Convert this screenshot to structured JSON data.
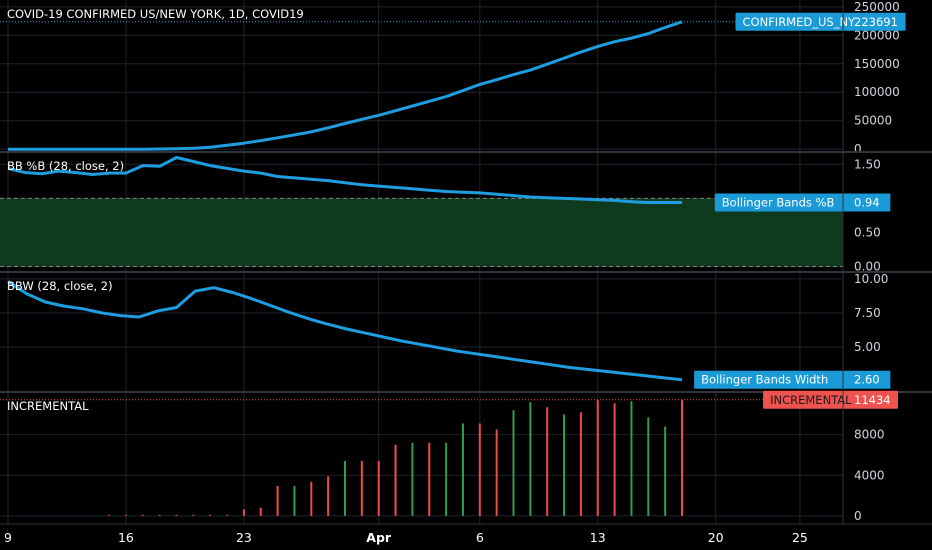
{
  "colors": {
    "background": "#000000",
    "grid": "#1f232c",
    "separator": "#30343d",
    "line": "#1e9ee0",
    "bullish": "#2e9e4f",
    "bearish": "#ef4b4b",
    "band_fill": "#0f3a1e",
    "badge_blue": "#1a9ad6",
    "badge_red": "#ef5350"
  },
  "chart_data": [
    {
      "type": "line",
      "title": "COVID-19 CONFIRMED US/NEW YORK, 1D, COVID19",
      "series": [
        {
          "name": "CONFIRMED_US_NY",
          "values": [
            0,
            0,
            0,
            0,
            0,
            0,
            0,
            0,
            0,
            200,
            600,
            1500,
            3500,
            7000,
            10500,
            15000,
            20000,
            25000,
            30500,
            37500,
            45000,
            52500,
            59500,
            67500,
            75800,
            84000,
            92400,
            102800,
            113700,
            122000,
            131000,
            138800,
            149300,
            159900,
            170500,
            180500,
            188700,
            195000,
            203000,
            213800,
            223691
          ]
        }
      ],
      "x_start": "Mar 9",
      "yticks": [
        0,
        50000,
        100000,
        150000,
        200000,
        250000
      ],
      "ylim": [
        -5000,
        262000
      ],
      "last_value": "223691",
      "last_label": "CONFIRMED_US_NY"
    },
    {
      "type": "line",
      "title": "BB %B (28, close, 2)",
      "series": [
        {
          "name": "Bollinger Bands %B",
          "values": [
            1.44,
            1.38,
            1.36,
            1.4,
            1.38,
            1.35,
            1.37,
            1.37,
            1.48,
            1.47,
            1.6,
            1.54,
            1.48,
            1.44,
            1.4,
            1.37,
            1.32,
            1.3,
            1.28,
            1.26,
            1.23,
            1.2,
            1.18,
            1.16,
            1.14,
            1.12,
            1.1,
            1.09,
            1.08,
            1.06,
            1.04,
            1.02,
            1.01,
            1.0,
            0.99,
            0.98,
            0.97,
            0.95,
            0.94,
            0.94,
            0.94
          ]
        }
      ],
      "band": [
        0,
        1
      ],
      "yticks": [
        0.0,
        0.5,
        1.0,
        1.5
      ],
      "ylim": [
        -0.08,
        1.68
      ],
      "last_value": "0.94",
      "last_label": "Bollinger Bands %B"
    },
    {
      "type": "line",
      "title": "BBW (28, close, 2)",
      "series": [
        {
          "name": "Bollinger Bands Width",
          "values": [
            9.8,
            8.9,
            8.3,
            8.0,
            7.8,
            7.5,
            7.3,
            7.2,
            7.65,
            7.9,
            9.1,
            9.35,
            9.0,
            8.55,
            8.05,
            7.55,
            7.1,
            6.7,
            6.35,
            6.05,
            5.75,
            5.45,
            5.2,
            4.95,
            4.7,
            4.5,
            4.3,
            4.1,
            3.9,
            3.7,
            3.5,
            3.35,
            3.2,
            3.05,
            2.9,
            2.75,
            2.6
          ]
        }
      ],
      "yticks": [
        5.0,
        7.5,
        10.0
      ],
      "ylim": [
        1.7,
        10.5
      ],
      "last_value": "2.60",
      "last_label": "Bollinger Bands Width"
    },
    {
      "type": "bar",
      "title": "INCREMENTAL",
      "series": [
        {
          "name": "INCREMENTAL",
          "values": [
            0,
            0,
            0,
            0,
            20,
            40,
            80,
            100,
            650,
            800,
            2950,
            2950,
            3350,
            3900,
            5400,
            5400,
            5400,
            7000,
            7200,
            7200,
            7200,
            9100,
            9100,
            8500,
            10400,
            11200,
            10700,
            10000,
            10200,
            11400,
            11100,
            11300,
            9700,
            8800,
            11434
          ],
          "direction": [
            "up",
            "up",
            "up",
            "up",
            "up",
            "up",
            "up",
            "up",
            "up",
            "up",
            "up",
            "down",
            "up",
            "up",
            "down",
            "up",
            "up",
            "up",
            "down",
            "up",
            "down",
            "down",
            "up",
            "up",
            "down",
            "down",
            "up",
            "down",
            "up",
            "up",
            "up",
            "down",
            "down",
            "down",
            "up"
          ]
        }
      ],
      "yticks": [
        0,
        4000,
        8000
      ],
      "ylim": [
        -800,
        12200
      ],
      "last_value": "11434",
      "last_label": "INCREMENTAL"
    }
  ],
  "x_axis": {
    "labels": [
      "9",
      "16",
      "23",
      "Apr",
      "6",
      "13",
      "20",
      "25"
    ],
    "label_days": [
      0,
      7,
      14,
      22,
      28,
      35,
      42,
      47
    ]
  }
}
